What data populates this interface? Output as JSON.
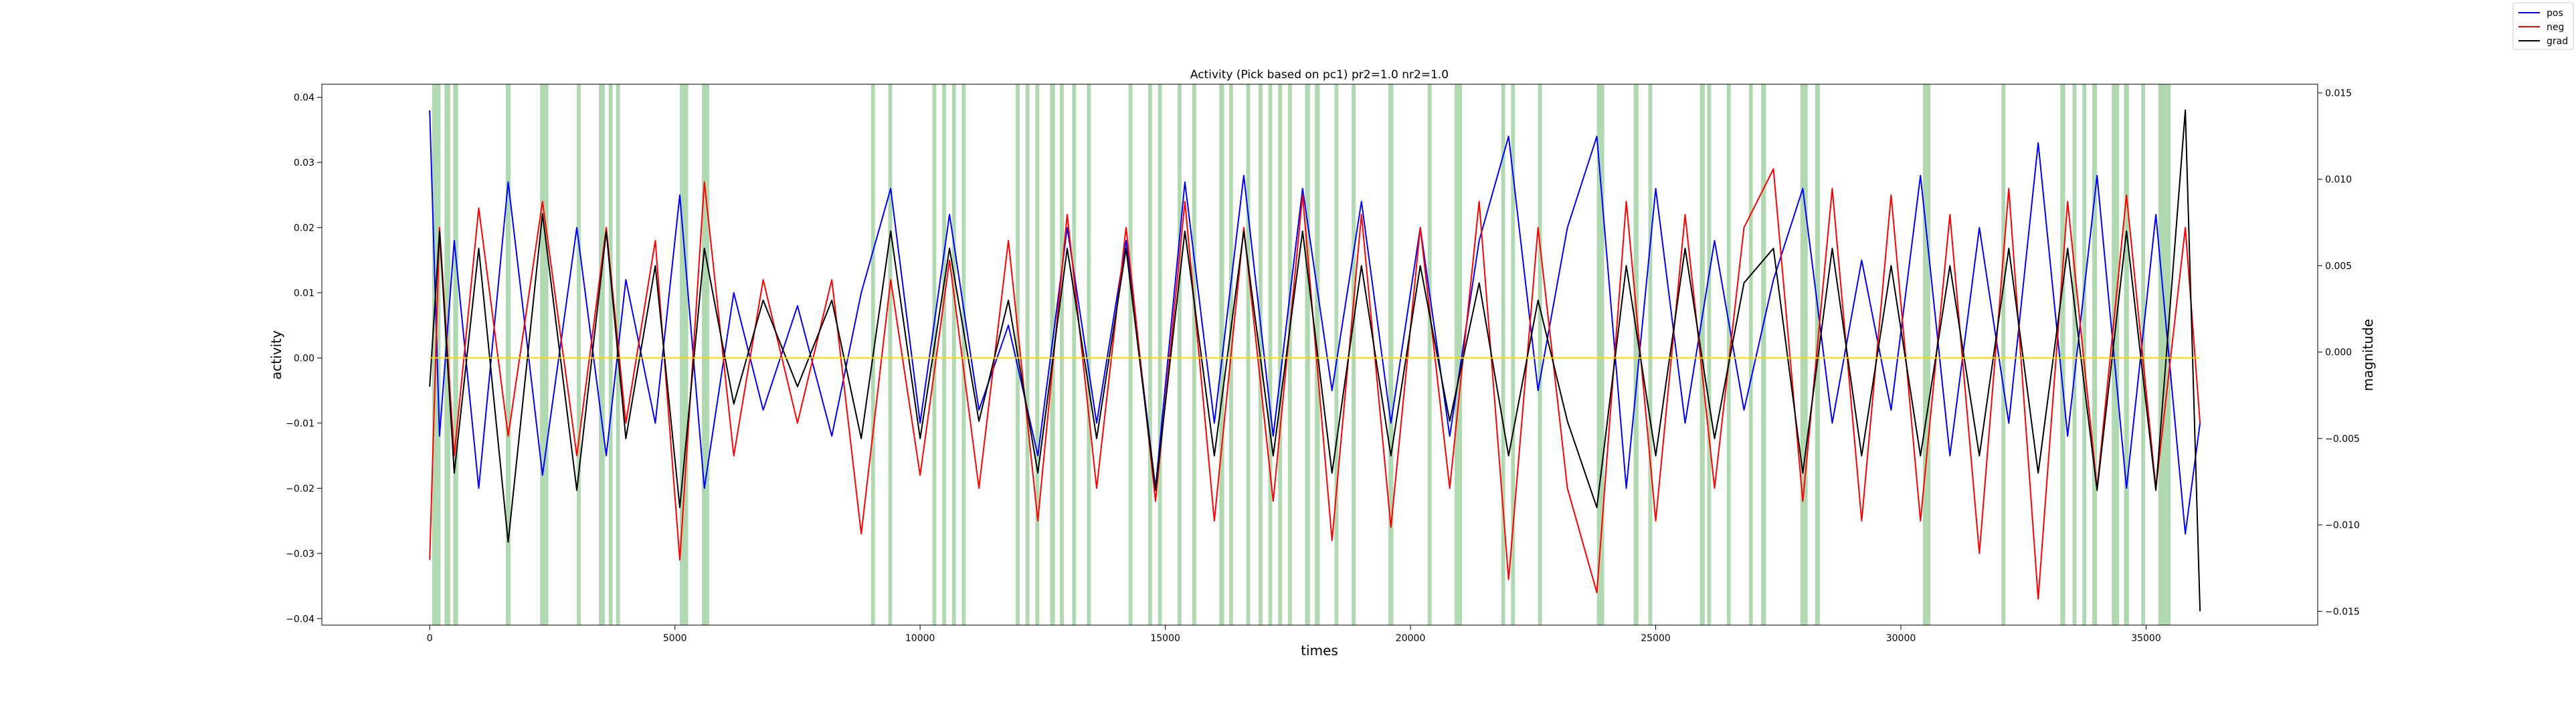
{
  "chart_data": {
    "type": "line",
    "title": "Activity (Pick based on pc1) pr2=1.0 nr2=1.0",
    "xlabel": "times",
    "ylabel": "activity",
    "ylabel_right": "magnitude",
    "xlim": [
      -2200,
      38500
    ],
    "ylim": [
      -0.041,
      0.042
    ],
    "ylim_right": [
      -0.0158,
      0.0155
    ],
    "x_ticks": [
      0,
      5000,
      10000,
      15000,
      20000,
      25000,
      30000,
      35000
    ],
    "x_tick_labels": [
      "0",
      "5000",
      "10000",
      "15000",
      "20000",
      "25000",
      "30000",
      "35000"
    ],
    "y_ticks": [
      -0.04,
      -0.03,
      -0.02,
      -0.01,
      0.0,
      0.01,
      0.02,
      0.03,
      0.04
    ],
    "y_tick_labels": [
      "−0.04",
      "−0.03",
      "−0.02",
      "−0.01",
      "0.00",
      "0.01",
      "0.02",
      "0.03",
      "0.04"
    ],
    "y_right_ticks": [
      -0.015,
      -0.01,
      -0.005,
      0.0,
      0.005,
      0.01,
      0.015
    ],
    "y_right_tick_labels": [
      "−0.015",
      "−0.010",
      "−0.005",
      "0.000",
      "0.005",
      "0.010",
      "0.015"
    ],
    "grid": false,
    "legend_position": "top-right",
    "series": [
      {
        "name": "pos",
        "color": "#0000ff",
        "axis": "left",
        "x": [
          0,
          200,
          500,
          1000,
          1600,
          2300,
          3000,
          3600,
          4000,
          4600,
          5100,
          5600,
          6200,
          6800,
          7500,
          8200,
          8800,
          9400,
          10000,
          10600,
          11200,
          11800,
          12400,
          13000,
          13600,
          14200,
          14800,
          15400,
          16000,
          16600,
          17200,
          17800,
          18400,
          19000,
          19600,
          20200,
          20800,
          21400,
          22000,
          22600,
          23200,
          23800,
          24400,
          25000,
          25600,
          26200,
          26800,
          27400,
          28000,
          28600,
          29200,
          29800,
          30400,
          31000,
          31600,
          32200,
          32800,
          33400,
          34000,
          34600,
          35200,
          35800,
          36100
        ],
        "values": [
          0.038,
          -0.012,
          0.018,
          -0.02,
          0.027,
          -0.018,
          0.02,
          -0.015,
          0.012,
          -0.01,
          0.025,
          -0.02,
          0.01,
          -0.008,
          0.008,
          -0.012,
          0.01,
          0.026,
          -0.01,
          0.022,
          -0.008,
          0.005,
          -0.015,
          0.02,
          -0.01,
          0.018,
          -0.02,
          0.027,
          -0.01,
          0.028,
          -0.012,
          0.026,
          -0.005,
          0.024,
          -0.01,
          0.02,
          -0.012,
          0.018,
          0.034,
          -0.005,
          0.02,
          0.034,
          -0.02,
          0.026,
          -0.01,
          0.018,
          -0.008,
          0.012,
          0.026,
          -0.01,
          0.015,
          -0.008,
          0.028,
          -0.015,
          0.02,
          -0.01,
          0.033,
          -0.012,
          0.028,
          -0.02,
          0.022,
          -0.027,
          -0.01
        ]
      },
      {
        "name": "neg",
        "color": "#ff0000",
        "axis": "left",
        "x": [
          0,
          200,
          500,
          1000,
          1600,
          2300,
          3000,
          3600,
          4000,
          4600,
          5100,
          5600,
          6200,
          6800,
          7500,
          8200,
          8800,
          9400,
          10000,
          10600,
          11200,
          11800,
          12400,
          13000,
          13600,
          14200,
          14800,
          15400,
          16000,
          16600,
          17200,
          17800,
          18400,
          19000,
          19600,
          20200,
          20800,
          21400,
          22000,
          22600,
          23200,
          23800,
          24400,
          25000,
          25600,
          26200,
          26800,
          27400,
          28000,
          28600,
          29200,
          29800,
          30400,
          31000,
          31600,
          32200,
          32800,
          33400,
          34000,
          34600,
          35200,
          35800,
          36100
        ],
        "values": [
          -0.031,
          0.02,
          -0.015,
          0.023,
          -0.012,
          0.024,
          -0.015,
          0.02,
          -0.01,
          0.018,
          -0.031,
          0.027,
          -0.015,
          0.012,
          -0.01,
          0.012,
          -0.027,
          0.012,
          -0.018,
          0.015,
          -0.02,
          0.018,
          -0.025,
          0.022,
          -0.02,
          0.02,
          -0.022,
          0.024,
          -0.025,
          0.02,
          -0.022,
          0.025,
          -0.028,
          0.022,
          -0.026,
          0.02,
          -0.02,
          0.024,
          -0.034,
          0.02,
          -0.02,
          -0.036,
          0.024,
          -0.025,
          0.022,
          -0.02,
          0.02,
          0.029,
          -0.022,
          0.026,
          -0.025,
          0.025,
          -0.025,
          0.022,
          -0.03,
          0.026,
          -0.037,
          0.024,
          -0.02,
          0.025,
          -0.02,
          0.02,
          -0.01
        ]
      },
      {
        "name": "grad",
        "color": "#000000",
        "axis": "right",
        "x": [
          0,
          200,
          500,
          1000,
          1600,
          2300,
          3000,
          3600,
          4000,
          4600,
          5100,
          5600,
          6200,
          6800,
          7500,
          8200,
          8800,
          9400,
          10000,
          10600,
          11200,
          11800,
          12400,
          13000,
          13600,
          14200,
          14800,
          15400,
          16000,
          16600,
          17200,
          17800,
          18400,
          19000,
          19600,
          20200,
          20800,
          21400,
          22000,
          22600,
          23200,
          23800,
          24400,
          25000,
          25600,
          26200,
          26800,
          27400,
          28000,
          28600,
          29200,
          29800,
          30400,
          31000,
          31600,
          32200,
          32800,
          33400,
          34000,
          34600,
          35200,
          35800,
          36100
        ],
        "values": [
          -0.002,
          0.007,
          -0.007,
          0.006,
          -0.011,
          0.008,
          -0.008,
          0.007,
          -0.005,
          0.005,
          -0.009,
          0.006,
          -0.003,
          0.003,
          -0.002,
          0.003,
          -0.005,
          0.007,
          -0.005,
          0.006,
          -0.004,
          0.003,
          -0.007,
          0.006,
          -0.005,
          0.006,
          -0.008,
          0.007,
          -0.006,
          0.007,
          -0.006,
          0.007,
          -0.007,
          0.005,
          -0.006,
          0.005,
          -0.004,
          0.004,
          -0.006,
          0.003,
          -0.004,
          -0.009,
          0.005,
          -0.006,
          0.006,
          -0.005,
          0.004,
          0.006,
          -0.007,
          0.006,
          -0.006,
          0.005,
          -0.006,
          0.005,
          -0.006,
          0.006,
          -0.007,
          0.006,
          -0.008,
          0.007,
          -0.008,
          0.014,
          -0.015
        ]
      }
    ],
    "zero_line": {
      "value": 0.0,
      "color": "#ffd700"
    },
    "highlight_regions": [
      [
        50,
        220
      ],
      [
        300,
        420
      ],
      [
        480,
        580
      ],
      [
        1550,
        1650
      ],
      [
        2250,
        2420
      ],
      [
        3000,
        3080
      ],
      [
        3450,
        3570
      ],
      [
        3650,
        3730
      ],
      [
        3800,
        3880
      ],
      [
        5100,
        5270
      ],
      [
        5550,
        5700
      ],
      [
        9000,
        9080
      ],
      [
        9350,
        9430
      ],
      [
        10250,
        10330
      ],
      [
        10450,
        10530
      ],
      [
        10650,
        10730
      ],
      [
        10850,
        10930
      ],
      [
        11950,
        12030
      ],
      [
        12150,
        12230
      ],
      [
        12350,
        12430
      ],
      [
        12650,
        12750
      ],
      [
        12850,
        12930
      ],
      [
        13100,
        13180
      ],
      [
        13400,
        13480
      ],
      [
        14250,
        14330
      ],
      [
        14650,
        14730
      ],
      [
        14850,
        14930
      ],
      [
        15250,
        15330
      ],
      [
        15550,
        15630
      ],
      [
        16100,
        16200
      ],
      [
        16300,
        16380
      ],
      [
        16650,
        16730
      ],
      [
        16900,
        16980
      ],
      [
        17100,
        17180
      ],
      [
        17300,
        17380
      ],
      [
        17500,
        17580
      ],
      [
        17850,
        17950
      ],
      [
        18050,
        18150
      ],
      [
        18450,
        18530
      ],
      [
        18800,
        18880
      ],
      [
        19550,
        19650
      ],
      [
        20350,
        20430
      ],
      [
        20900,
        21050
      ],
      [
        21850,
        21930
      ],
      [
        22050,
        22130
      ],
      [
        22600,
        22680
      ],
      [
        23800,
        23950
      ],
      [
        24550,
        24650
      ],
      [
        24850,
        24930
      ],
      [
        25900,
        26000
      ],
      [
        26050,
        26130
      ],
      [
        26450,
        26530
      ],
      [
        26900,
        26980
      ],
      [
        27150,
        27250
      ],
      [
        27950,
        28100
      ],
      [
        28250,
        28350
      ],
      [
        30450,
        30600
      ],
      [
        32050,
        32130
      ],
      [
        33250,
        33350
      ],
      [
        33500,
        33580
      ],
      [
        33700,
        33780
      ],
      [
        33900,
        34000
      ],
      [
        34300,
        34450
      ],
      [
        34550,
        34650
      ],
      [
        34900,
        34980
      ],
      [
        35250,
        35500
      ]
    ]
  }
}
